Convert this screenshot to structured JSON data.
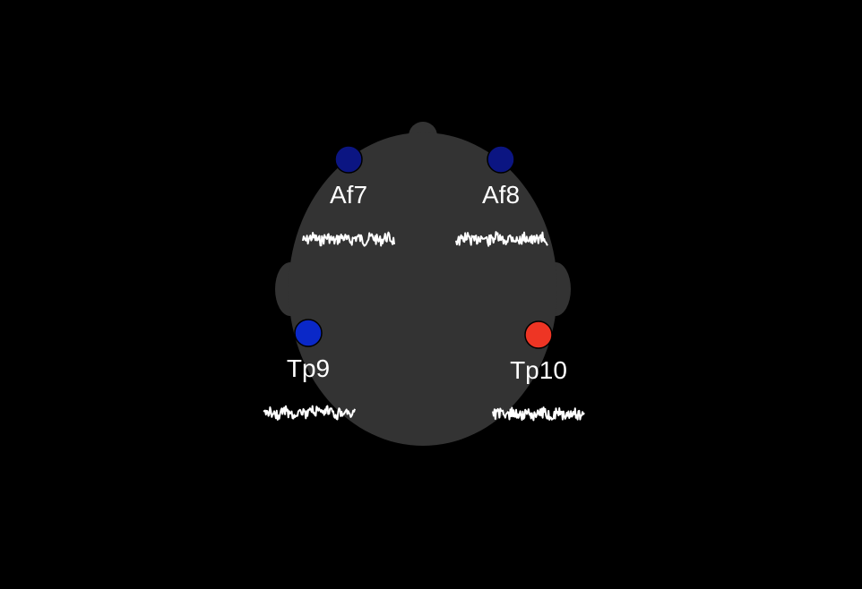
{
  "head": {
    "color": "#333333"
  },
  "electrodes": [
    {
      "id": "af7",
      "label": "Af7",
      "color": "#0b1582",
      "signal_seed": 7
    },
    {
      "id": "af8",
      "label": "Af8",
      "color": "#0b1582",
      "signal_seed": 13
    },
    {
      "id": "tp9",
      "label": "Tp9",
      "color": "#0a28c8",
      "signal_seed": 21
    },
    {
      "id": "tp10",
      "label": "Tp10",
      "color": "#ee3524",
      "signal_seed": 34
    }
  ]
}
